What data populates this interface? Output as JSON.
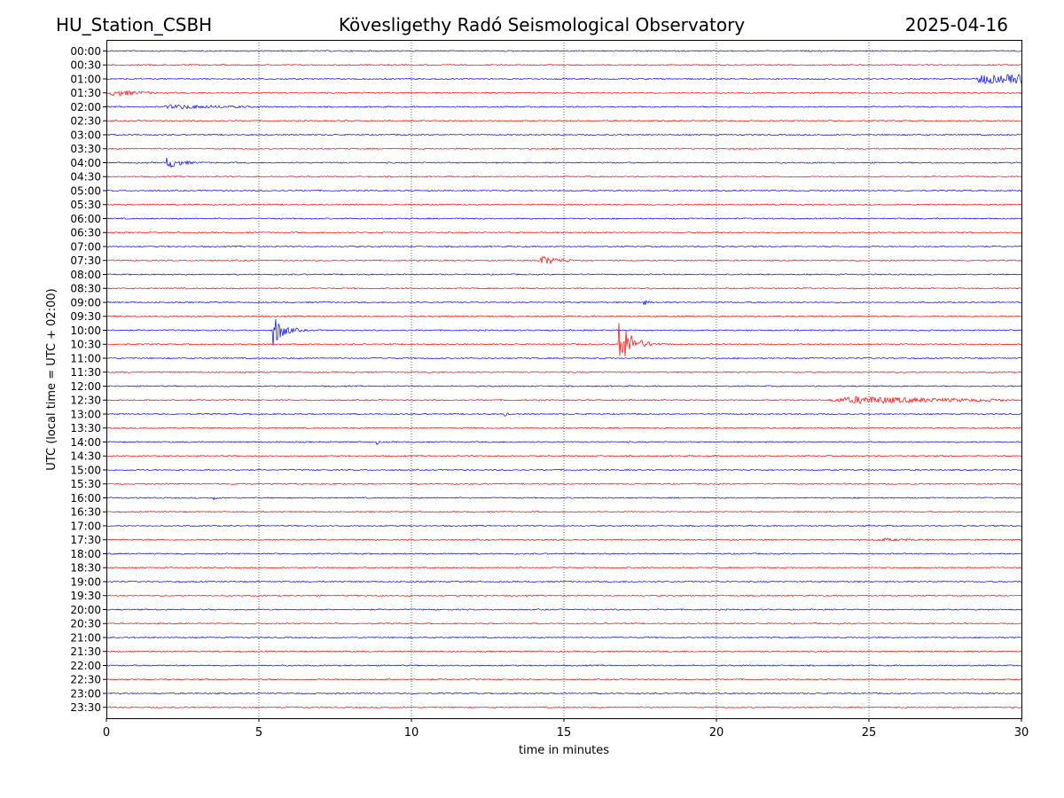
{
  "header": {
    "station": "HU_Station_CSBH",
    "observatory": "Kövesligethy Radó Seismological Observatory",
    "date": "2025-04-16"
  },
  "chart_data": {
    "type": "line",
    "title": "Kövesligethy Radó Seismological Observatory",
    "xlabel": "time in minutes",
    "ylabel": "UTC (local time = UTC + 02:00)",
    "xlim": [
      0,
      30
    ],
    "x_ticks": [
      0,
      5,
      10,
      15,
      20,
      25,
      30
    ],
    "grid": "vertical dotted at 5-minute ticks",
    "trace_colors": [
      "#0000ff",
      "#ff0000"
    ],
    "rows": [
      "00:00",
      "00:30",
      "01:00",
      "01:30",
      "02:00",
      "02:30",
      "03:00",
      "03:30",
      "04:00",
      "04:30",
      "05:00",
      "05:30",
      "06:00",
      "06:30",
      "07:00",
      "07:30",
      "08:00",
      "08:30",
      "09:00",
      "09:30",
      "10:00",
      "10:30",
      "11:00",
      "11:30",
      "12:00",
      "12:30",
      "13:00",
      "13:30",
      "14:00",
      "14:30",
      "15:00",
      "15:30",
      "16:00",
      "16:30",
      "17:00",
      "17:30",
      "18:00",
      "18:30",
      "19:00",
      "19:30",
      "20:00",
      "20:30",
      "21:00",
      "21:30",
      "22:00",
      "22:30",
      "23:00",
      "23:30"
    ],
    "events": [
      {
        "row": "01:00",
        "start_min": 28.5,
        "duration_min": 1.5,
        "peak_amplitude": 5,
        "decay": "sustained"
      },
      {
        "row": "01:30",
        "start_min": 0.0,
        "duration_min": 1.6,
        "peak_amplitude": 5,
        "decay": "emergent"
      },
      {
        "row": "02:00",
        "start_min": 1.7,
        "duration_min": 3.5,
        "peak_amplitude": 3,
        "decay": "emergent"
      },
      {
        "row": "04:00",
        "start_min": 1.95,
        "duration_min": 1.8,
        "peak_amplitude": 8,
        "decay": "impulsive"
      },
      {
        "row": "07:30",
        "start_min": 14.1,
        "duration_min": 1.2,
        "peak_amplitude": 7,
        "decay": "emergent"
      },
      {
        "row": "09:00",
        "start_min": 17.6,
        "duration_min": 0.5,
        "peak_amplitude": 4,
        "decay": "impulsive"
      },
      {
        "row": "10:00",
        "start_min": 5.45,
        "duration_min": 1.5,
        "peak_amplitude": 20,
        "decay": "impulsive"
      },
      {
        "row": "10:30",
        "start_min": 16.8,
        "duration_min": 1.8,
        "peak_amplitude": 30,
        "decay": "impulsive"
      },
      {
        "row": "12:30",
        "start_min": 23.6,
        "duration_min": 6.0,
        "peak_amplitude": 6,
        "decay": "emergent"
      },
      {
        "row": "13:00",
        "start_min": 13.05,
        "duration_min": 0.3,
        "peak_amplitude": 3,
        "decay": "impulsive"
      },
      {
        "row": "14:00",
        "start_min": 8.85,
        "duration_min": 0.3,
        "peak_amplitude": 3,
        "decay": "impulsive"
      },
      {
        "row": "16:00",
        "start_min": 3.5,
        "duration_min": 0.4,
        "peak_amplitude": 2,
        "decay": "impulsive"
      },
      {
        "row": "17:30",
        "start_min": 25.2,
        "duration_min": 1.8,
        "peak_amplitude": 2,
        "decay": "emergent"
      }
    ]
  }
}
